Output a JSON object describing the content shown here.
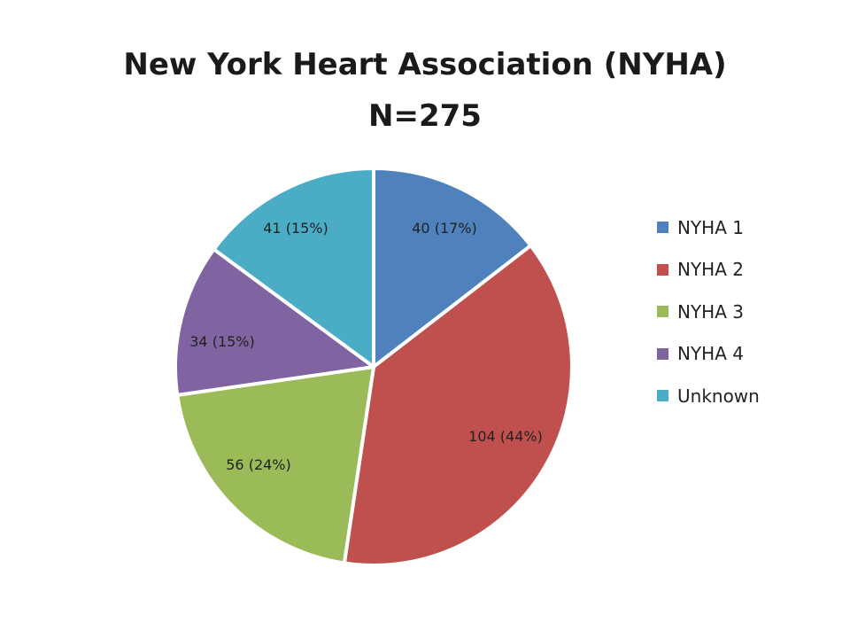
{
  "chart_data": {
    "type": "pie",
    "title": [
      "New York Heart Association (NYHA)",
      "N=275"
    ],
    "slices": [
      {
        "name": "NYHA 1",
        "value": 40,
        "label": "40 (17%)",
        "color": "#4F81BD"
      },
      {
        "name": "NYHA 2",
        "value": 104,
        "label": "104 (44%)",
        "color": "#C0504D"
      },
      {
        "name": "NYHA 3",
        "value": 56,
        "label": "56 (24%)",
        "color": "#9BBB59"
      },
      {
        "name": "NYHA 4",
        "value": 34,
        "label": "34 (15%)",
        "color": "#8064A2"
      },
      {
        "name": "Unknown",
        "value": 41,
        "label": "41 (15%)",
        "color": "#4BACC6"
      }
    ],
    "start_angle_deg": 0,
    "direction": "clockwise",
    "legend_position": "right"
  }
}
